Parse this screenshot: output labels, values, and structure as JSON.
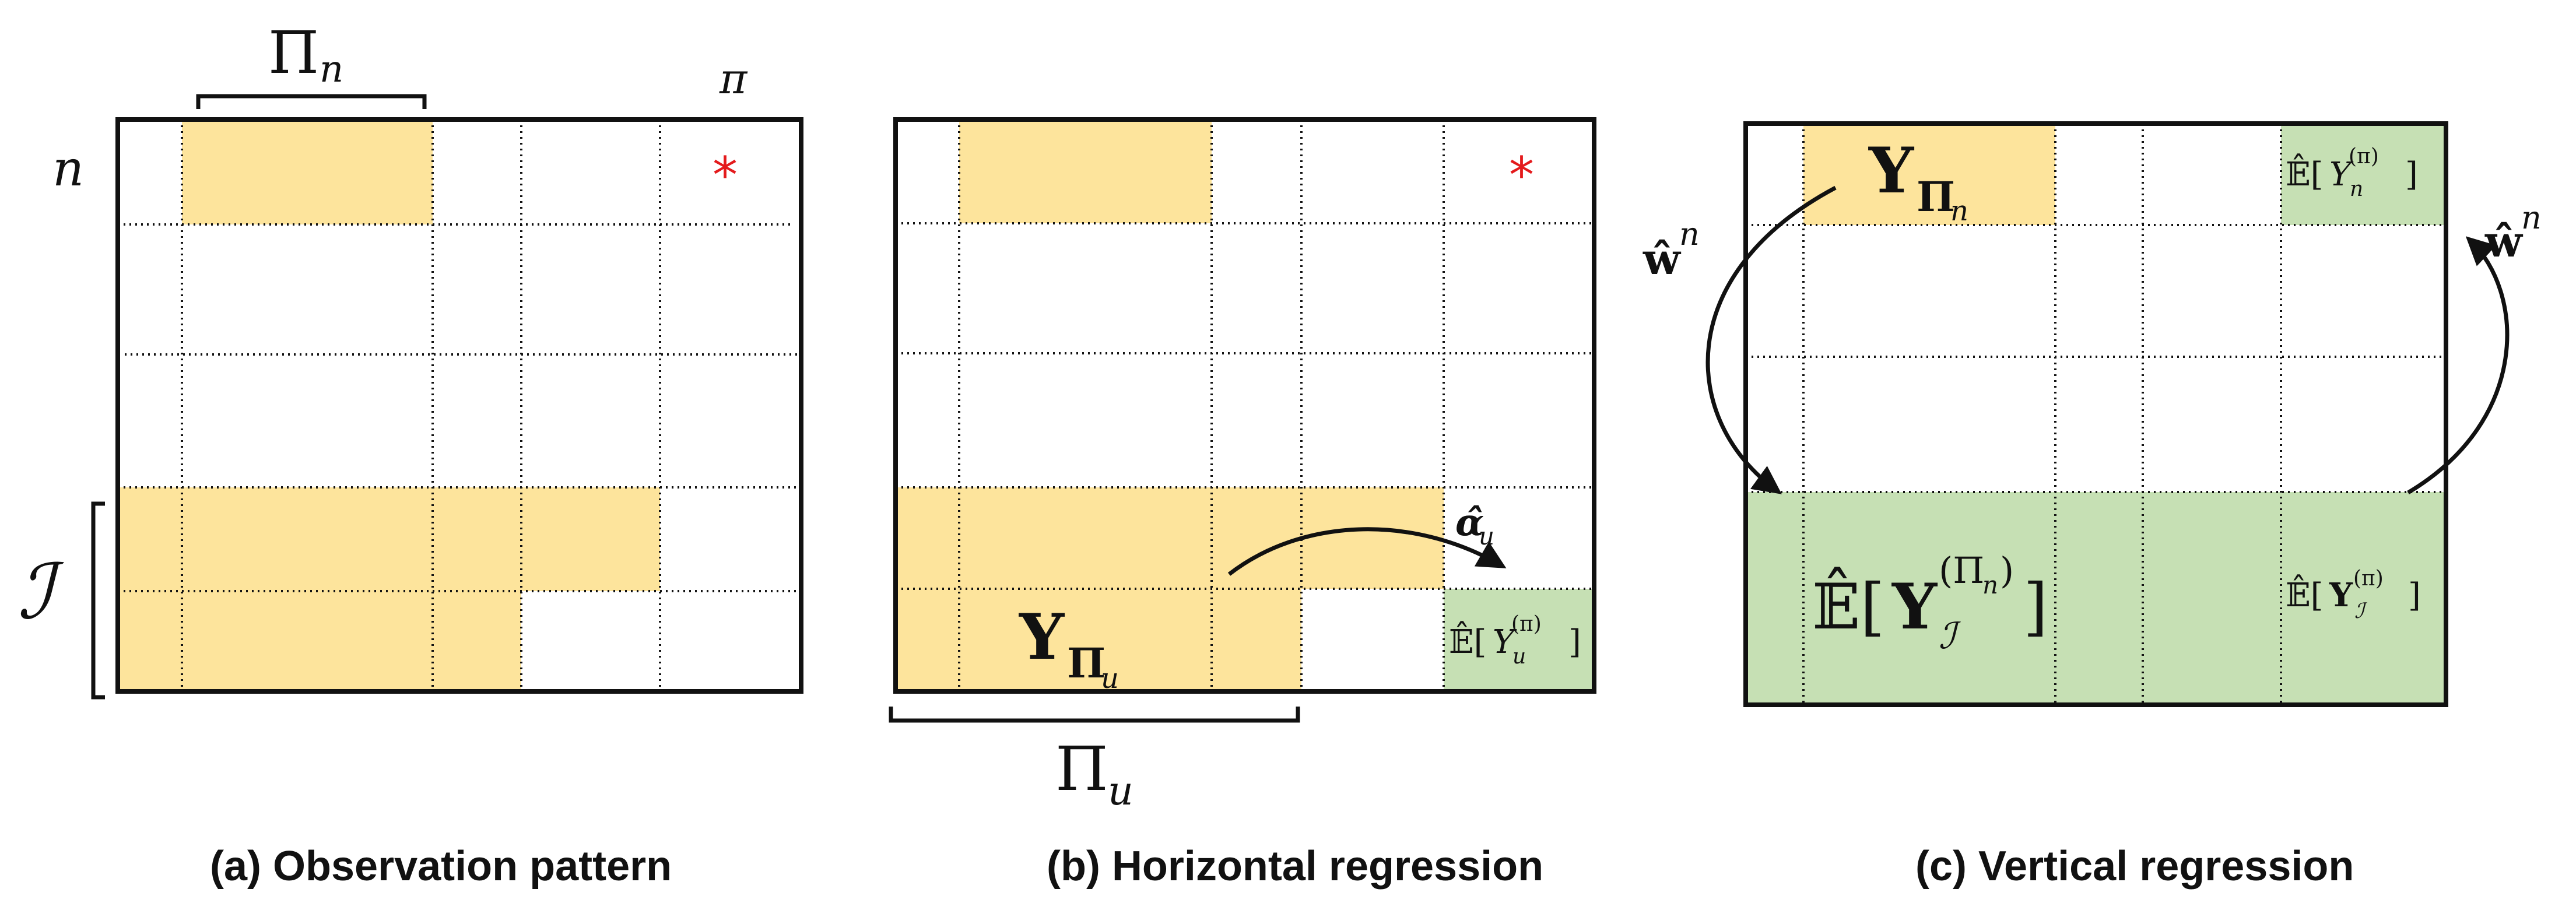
{
  "colors": {
    "observed": "#fde49c",
    "estimated": "#c6e0b4",
    "border": "#111111",
    "star": "#e41a1c"
  },
  "panel_a": {
    "caption": "(a) Observation pattern",
    "col_bracket_label": "Π",
    "col_bracket_sub": "n",
    "col_top_label": "π",
    "row_label": "n",
    "group_label": "ℐ",
    "star": "*"
  },
  "panel_b": {
    "caption": "(b) Horizontal regression",
    "y_label": "Y",
    "y_sub": "Π",
    "y_subsub": "u",
    "alpha_label": "α̂",
    "alpha_sub": "u",
    "cell_E": "𝔼̂[",
    "cell_Y": "Y",
    "cell_sub": "u",
    "cell_sup": "(π)",
    "cell_close": "]",
    "bracket_label": "Π",
    "bracket_sub": "u",
    "star": "*"
  },
  "panel_c": {
    "caption": "(c) Vertical regression",
    "y_label": "Y",
    "y_sub": "Π",
    "y_subsub": "n",
    "top_E": "𝔼̂[",
    "top_Y": "Y",
    "top_sub": "n",
    "top_sup": "(π)",
    "top_close": "]",
    "w_left": "ŵ",
    "w_left_sup": "n",
    "w_right": "ŵ",
    "w_right_sup": "n",
    "big_E": "𝔼̂[",
    "big_Y": "Y",
    "big_sub": "ℐ",
    "big_sup": "(Π",
    "big_supsub": "n",
    "big_sup_close": ")",
    "big_close": "]",
    "right_E": "𝔼̂[",
    "right_Y": "Y",
    "right_sub": "ℐ",
    "right_sup": "(π)",
    "right_close": "]"
  }
}
